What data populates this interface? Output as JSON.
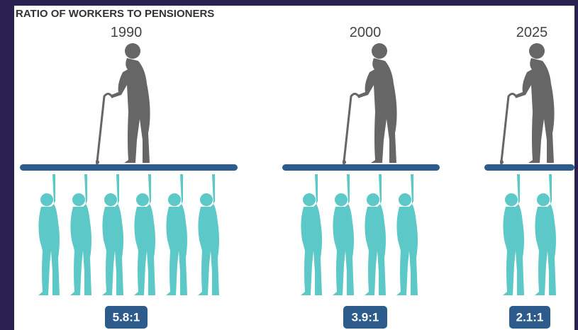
{
  "title": "RATIO OF WORKERS TO PENSIONERS",
  "groups": [
    {
      "year": "1990",
      "ratio": "5.8:1"
    },
    {
      "year": "2000",
      "ratio": "3.9:1"
    },
    {
      "year": "2025",
      "ratio": "2.1:1"
    }
  ]
}
